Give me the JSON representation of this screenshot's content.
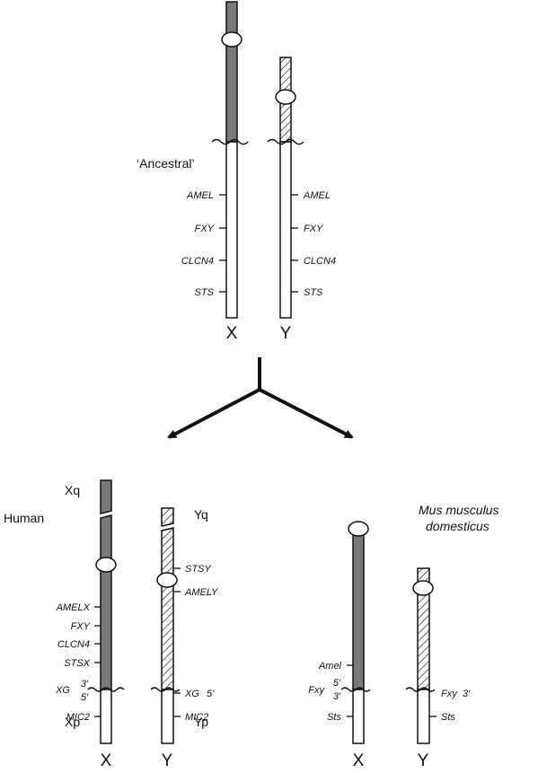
{
  "ancestral": {
    "title": "‘Ancestral’",
    "x_genes": [
      "AMEL",
      "FXY",
      "CLCN4",
      "STS"
    ],
    "y_genes": [
      "AMEL",
      "FXY",
      "CLCN4",
      "STS"
    ],
    "x_label": "X",
    "y_label": "Y"
  },
  "human": {
    "title": "Human",
    "xq": "Xq",
    "xp": "Xp",
    "yq": "Yq",
    "yp": "Yp",
    "x_genes": [
      "AMELX",
      "FXY",
      "CLCN4",
      "STSX",
      "XG",
      "MIC2"
    ],
    "x_xg_ends": [
      "3'",
      "5'"
    ],
    "y_genes": [
      "STSY",
      "AMELY",
      "XG",
      "MIC2"
    ],
    "y_xg_end": "5'",
    "x_label": "X",
    "y_label": "Y"
  },
  "mouse": {
    "title_line1": "Mus musculus",
    "title_line2": "domesticus",
    "x_genes": [
      "Amel",
      "Fxy",
      "Sts"
    ],
    "x_fxy_ends": [
      "5'",
      "3'"
    ],
    "y_genes": [
      "Fxy",
      "Sts"
    ],
    "y_fxy_end": "3'",
    "x_label": "X",
    "y_label": "Y"
  },
  "colors": {
    "stroke": "#111111",
    "stipple": "#7a7a7a",
    "hatch": "#111111"
  }
}
